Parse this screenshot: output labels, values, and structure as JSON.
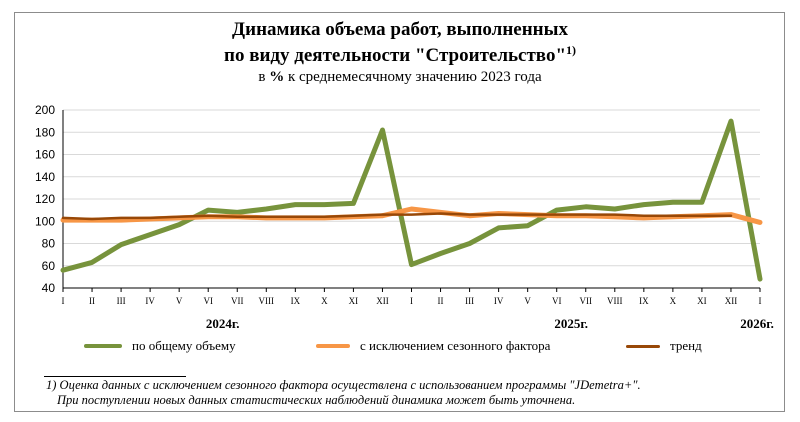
{
  "title": {
    "line1": "Динамика объема работ, выполненных",
    "line2": "по виду деятельности \"Строительство\"",
    "footnote_mark": "1)",
    "subtitle_pre": "в",
    "subtitle_bold": "%",
    "subtitle_post": "к среднемесячному значению 2023  года"
  },
  "footnote": {
    "line1": "1) Оценка данных с исключением сезонного фактора осуществлена с использованием программы \"JDemetra+\".",
    "line2": "При поступлении новых данных статистических наблюдений динамика может быть уточнена."
  },
  "chart_data": {
    "type": "line",
    "title": "Динамика объема работ, выполненных по виду деятельности \"Строительство\"",
    "ylabel": "в % к среднемесячному значению 2023 года",
    "ylim": [
      40,
      200
    ],
    "yticks": [
      40,
      60,
      80,
      100,
      120,
      140,
      160,
      180,
      200
    ],
    "grid": true,
    "legend_position": "bottom",
    "categories": [
      "I",
      "II",
      "III",
      "IV",
      "V",
      "VI",
      "VII",
      "VIII",
      "IX",
      "X",
      "XI",
      "XII",
      "I",
      "II",
      "III",
      "IV",
      "V",
      "VI",
      "VII",
      "VIII",
      "IX",
      "X",
      "XI",
      "XII",
      "I"
    ],
    "year_labels": [
      {
        "label": "2024г.",
        "at": 5.5
      },
      {
        "label": "2025г.",
        "at": 17.5
      },
      {
        "label": "2026г.",
        "at": 23.9
      }
    ],
    "series": [
      {
        "name": "по общему объему",
        "color": "#77933c",
        "width": 5,
        "values": [
          56,
          63,
          79,
          88,
          97,
          110,
          108,
          111,
          115,
          115,
          116,
          182,
          61,
          71,
          80,
          94,
          96,
          110,
          113,
          111,
          115,
          117,
          117,
          190,
          48
        ]
      },
      {
        "name": "с исключением сезонного фактора",
        "color": "#f79646",
        "width": 5,
        "values": [
          101,
          101,
          101,
          102,
          103,
          104,
          104,
          103,
          103,
          103,
          104,
          105,
          111,
          108,
          105,
          107,
          106,
          105,
          105,
          104,
          103,
          104,
          105,
          106,
          99
        ]
      },
      {
        "name": "тренд",
        "color": "#984807",
        "width": 2.5,
        "values": [
          103,
          102,
          103,
          103,
          104,
          105,
          104,
          104,
          104,
          104,
          105,
          106,
          106,
          107,
          106,
          106,
          106,
          106,
          106,
          106,
          105,
          105,
          105,
          105,
          null
        ]
      }
    ]
  }
}
